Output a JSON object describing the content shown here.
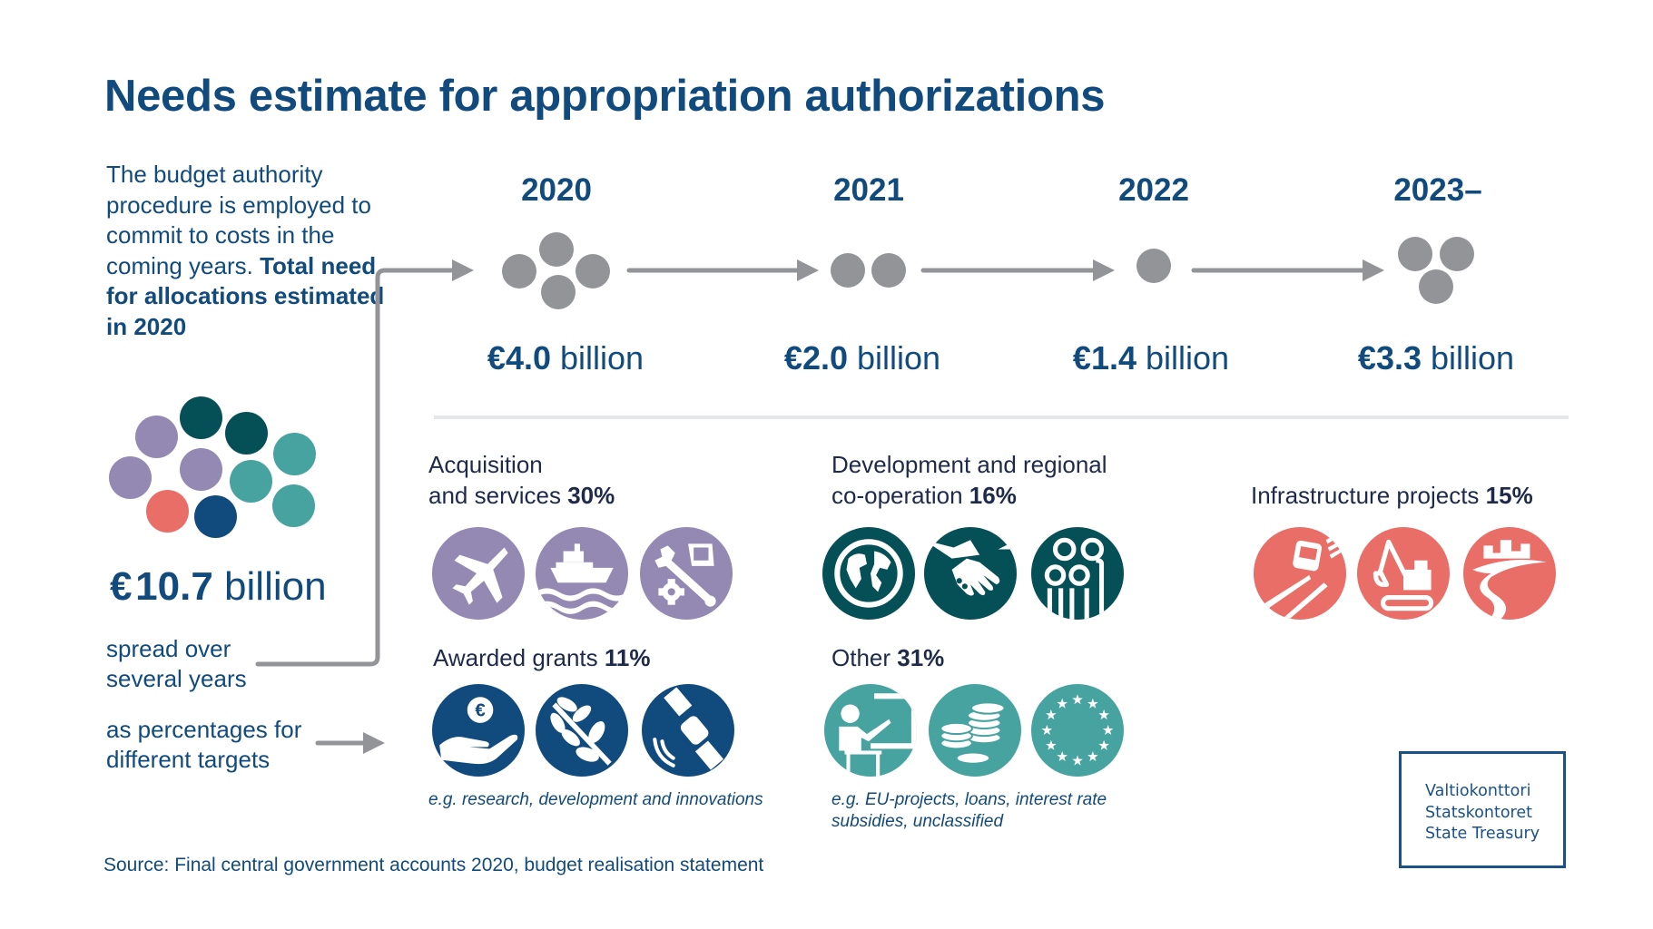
{
  "title": "Needs estimate for appropriation authorizations",
  "intro": {
    "regular": "The budget authority procedure is employed to commit to costs in the coming years.",
    "bold": "Total need for allocations estimated in 2020"
  },
  "total": {
    "currency": "€",
    "value": "10.7",
    "unit": "billion",
    "spread_text_line1": "spread over",
    "spread_text_line2": "several years",
    "percent_text_line1": "as percentages for",
    "percent_text_line2": "different targets"
  },
  "timeline": [
    {
      "year": "2020",
      "currency": "€",
      "value": "4.0",
      "unit": "billion",
      "dots": 4
    },
    {
      "year": "2021",
      "currency": "€",
      "value": "2.0",
      "unit": "billion",
      "dots": 2
    },
    {
      "year": "2022",
      "currency": "€",
      "value": "1.4",
      "unit": "billion",
      "dots": 1
    },
    {
      "year": "2023–",
      "currency": "€",
      "value": "3.3",
      "unit": "billion",
      "dots": 3
    }
  ],
  "categories": {
    "acquisition": {
      "line1": "Acquisition",
      "line2": "and services",
      "percent": "30%",
      "color": "#9389b3",
      "icons": [
        "fighter-jet-icon",
        "ship-icon",
        "tools-computer-icon"
      ]
    },
    "development": {
      "line1": "Development and regional",
      "line2": "co-operation",
      "percent": "16%",
      "color": "#054f56",
      "icons": [
        "globe-icon",
        "handshake-icon",
        "family-icon"
      ]
    },
    "infrastructure": {
      "label": "Infrastructure projects",
      "percent": "15%",
      "color": "#e96e68",
      "icons": [
        "bus-road-icon",
        "excavator-icon",
        "city-road-icon"
      ]
    },
    "grants": {
      "label": "Awarded grants",
      "percent": "11%",
      "color": "#114a7d",
      "note": "e.g. research, development and innovations",
      "icons": [
        "hand-euro-icon",
        "olive-branch-icon",
        "satellite-icon"
      ]
    },
    "other": {
      "label": "Other",
      "percent": "31%",
      "color": "#46a3a0",
      "note_line1": "e.g. EU-projects, loans, interest rate",
      "note_line2": "subsidies, unclassified",
      "icons": [
        "teacher-board-icon",
        "coins-icon",
        "eu-stars-icon"
      ]
    }
  },
  "colors": {
    "navy": "#114a7d",
    "dark_teal": "#054f56",
    "teal": "#46a3a0",
    "purple": "#9389b3",
    "coral": "#e96e68",
    "grey": "#939498"
  },
  "source": "Source: Final central government accounts 2020, budget realisation statement",
  "logo": {
    "line1": "Valtiokonttori",
    "line2": "Statskontoret",
    "line3": "State Treasury"
  }
}
